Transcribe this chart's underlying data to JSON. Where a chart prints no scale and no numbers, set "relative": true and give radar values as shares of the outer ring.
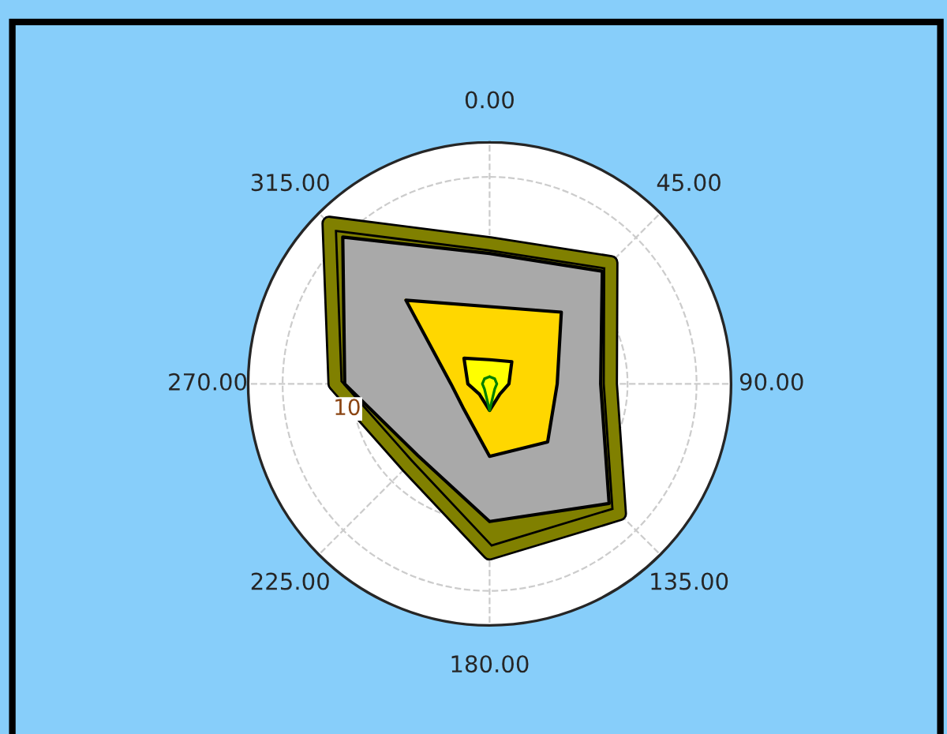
{
  "chart_data": {
    "type": "radar",
    "relative": true,
    "grid": true,
    "marker": "none",
    "categories": [
      "0.00",
      "45.00",
      "90.00",
      "135.00",
      "180.00",
      "225.00",
      "270.00",
      "315.00"
    ],
    "series": [
      {
        "color": "#808000",
        "values": [
          0.58,
          0.71,
          0.5,
          0.76,
          0.7,
          0.48,
          0.64,
          0.94
        ]
      },
      {
        "color": "#a9a9a9",
        "values": [
          0.54,
          0.66,
          0.46,
          0.7,
          0.57,
          0.42,
          0.6,
          0.86
        ]
      },
      {
        "color": "#ffd700",
        "values": [
          0.32,
          0.42,
          0.28,
          0.34,
          0.3,
          0.15,
          0.16,
          0.49
        ]
      },
      {
        "color": "#ffff00",
        "values": [
          0.1,
          0.13,
          0.08,
          0.06,
          0.11,
          0.06,
          0.09,
          0.15
        ]
      },
      {
        "color": "#008000",
        "values": [
          0.03,
          0.03,
          0.03,
          0.03,
          0.11,
          0.03,
          0.03,
          0.03
        ]
      }
    ],
    "annotations": [
      "10"
    ]
  }
}
